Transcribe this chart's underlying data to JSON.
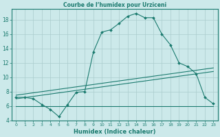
{
  "title": "Courbe de l’humidex pour Urziceni",
  "xlabel": "Humidex (Indice chaleur)",
  "bg_color": "#cce9ea",
  "grid_color": "#aacccc",
  "line_color": "#1a7a6e",
  "xlim": [
    -0.5,
    23.5
  ],
  "ylim": [
    4,
    19.5
  ],
  "xticks": [
    0,
    1,
    2,
    3,
    4,
    5,
    6,
    7,
    8,
    9,
    10,
    11,
    12,
    13,
    14,
    15,
    16,
    17,
    18,
    19,
    20,
    21,
    22,
    23
  ],
  "yticks": [
    4,
    6,
    8,
    10,
    12,
    14,
    16,
    18
  ],
  "curve1_x": [
    0,
    1,
    2,
    3,
    4,
    5,
    6,
    7,
    8,
    9,
    10,
    11,
    12,
    13,
    14,
    15,
    16,
    17,
    18,
    19,
    20,
    21,
    22,
    23
  ],
  "curve1_y": [
    7.2,
    7.2,
    7.0,
    6.2,
    5.5,
    4.5,
    6.2,
    7.9,
    8.0,
    13.5,
    16.3,
    16.6,
    17.5,
    18.5,
    18.9,
    18.3,
    18.3,
    16.0,
    14.5,
    12.0,
    11.5,
    10.5,
    7.2,
    6.3
  ],
  "curve2_x": [
    0,
    5,
    23
  ],
  "curve2_y": [
    6.0,
    6.0,
    6.0
  ],
  "curve3_x": [
    0,
    23
  ],
  "curve3_y": [
    7.0,
    10.8
  ],
  "curve4_x": [
    0,
    23
  ],
  "curve4_y": [
    7.5,
    11.3
  ]
}
